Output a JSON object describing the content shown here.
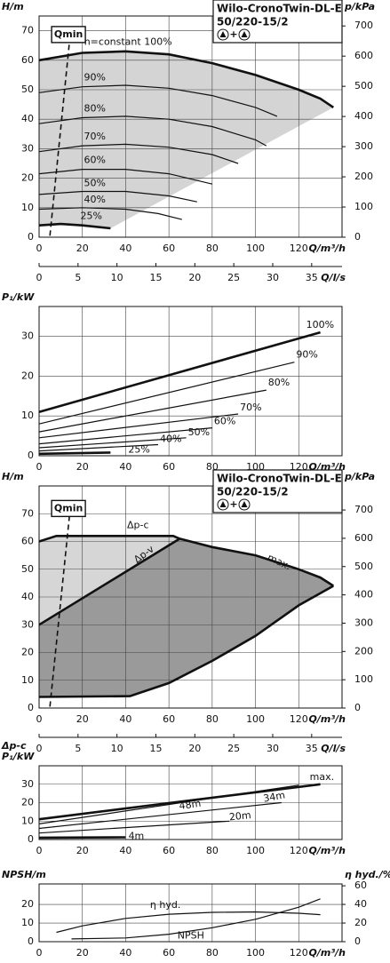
{
  "chart_data": [
    {
      "type": "line",
      "title": "Wilo-CronoTwin-DL-E",
      "subtitle": "50/220-15/2",
      "symbol_separator": "+",
      "ylabel": "H/m",
      "y2label": "p/kPa",
      "xlabel": "Q/m³/h",
      "x2label": "Q/l/s",
      "xlim": [
        0,
        140
      ],
      "xticks": [
        0,
        20,
        40,
        60,
        80,
        100,
        120
      ],
      "x2lim": [
        0,
        38.9
      ],
      "x2ticks": [
        0,
        5,
        10,
        15,
        20,
        25,
        30,
        35
      ],
      "ylim": [
        0,
        75
      ],
      "yticks": [
        0,
        10,
        20,
        30,
        40,
        50,
        60,
        70
      ],
      "y2lim": [
        0,
        733
      ],
      "y2ticks": [
        0,
        100,
        200,
        300,
        400,
        500,
        600,
        700
      ],
      "grid": true,
      "color": "#111111",
      "area_color": "#d4d4d4",
      "series": [
        {
          "name": "n=constant 100%",
          "bold": true,
          "x": [
            0,
            20,
            40,
            60,
            80,
            100,
            120,
            130,
            136
          ],
          "values": [
            60,
            62.5,
            63,
            62,
            59,
            55,
            50,
            47,
            44
          ]
        },
        {
          "name": "90%",
          "x": [
            0,
            20,
            40,
            60,
            80,
            100,
            110
          ],
          "values": [
            49,
            51,
            51.5,
            50.5,
            48,
            44,
            41
          ]
        },
        {
          "name": "80%",
          "x": [
            0,
            20,
            40,
            60,
            80,
            100,
            105
          ],
          "values": [
            38.5,
            40.5,
            41,
            40,
            37.5,
            33,
            31
          ]
        },
        {
          "name": "70%",
          "x": [
            0,
            20,
            40,
            60,
            80,
            92
          ],
          "values": [
            29,
            31,
            31.5,
            30.5,
            28,
            25
          ]
        },
        {
          "name": "60%",
          "x": [
            0,
            20,
            40,
            60,
            80
          ],
          "values": [
            21.5,
            23,
            23,
            21.5,
            18
          ]
        },
        {
          "name": "50%",
          "x": [
            0,
            20,
            40,
            60,
            73
          ],
          "values": [
            14.5,
            15.5,
            15.5,
            14,
            12
          ]
        },
        {
          "name": "40%",
          "x": [
            0,
            20,
            40,
            55,
            66
          ],
          "values": [
            9.5,
            10,
            9.5,
            8,
            6
          ]
        },
        {
          "name": "25%",
          "bold": true,
          "x": [
            0,
            10,
            20,
            33
          ],
          "values": [
            4,
            4.5,
            4,
            3
          ]
        },
        {
          "name": "Qmin",
          "dashed": true,
          "x": [
            5,
            14
          ],
          "values": [
            0.5,
            66
          ]
        }
      ]
    },
    {
      "type": "line",
      "ylabel": "P₁/kW",
      "xlabel": "Q/m³/h",
      "xlim": [
        0,
        140
      ],
      "xticks": [
        0,
        20,
        40,
        60,
        80,
        100,
        120
      ],
      "ylim": [
        0,
        37.5
      ],
      "yticks": [
        0,
        10,
        20,
        30
      ],
      "grid": true,
      "color": "#111111",
      "series": [
        {
          "name": "100%",
          "bold": true,
          "x": [
            0,
            130
          ],
          "values": [
            11,
            31
          ]
        },
        {
          "name": "90%",
          "x": [
            0,
            118
          ],
          "values": [
            8,
            23.5
          ]
        },
        {
          "name": "80%",
          "x": [
            0,
            105
          ],
          "values": [
            6,
            16.5
          ]
        },
        {
          "name": "70%",
          "x": [
            0,
            92
          ],
          "values": [
            4.5,
            10.5
          ]
        },
        {
          "name": "60%",
          "x": [
            0,
            80
          ],
          "values": [
            3,
            7
          ]
        },
        {
          "name": "50%",
          "x": [
            0,
            68
          ],
          "values": [
            2,
            4.5
          ]
        },
        {
          "name": "40%",
          "x": [
            0,
            55
          ],
          "values": [
            1.2,
            2.8
          ]
        },
        {
          "name": "25%",
          "bold": true,
          "x": [
            0,
            33
          ],
          "values": [
            0.5,
            0.8
          ]
        }
      ]
    },
    {
      "type": "line",
      "title": "Wilo-CronoTwin-DL-E",
      "subtitle": "50/220-15/2",
      "symbol_separator": "+",
      "ylabel": "H/m",
      "y2label": "p/kPa",
      "xlabel": "Q/m³/h",
      "x2label": "Q/l/s",
      "xlim": [
        0,
        140
      ],
      "xticks": [
        0,
        20,
        40,
        60,
        80,
        100,
        120
      ],
      "x2lim": [
        0,
        38.9
      ],
      "x2ticks": [
        0,
        5,
        10,
        15,
        20,
        25,
        30,
        35
      ],
      "ylim": [
        0,
        80
      ],
      "yticks": [
        0,
        10,
        20,
        30,
        40,
        50,
        60,
        70
      ],
      "y2lim": [
        0,
        785
      ],
      "y2ticks": [
        0,
        100,
        200,
        300,
        400,
        500,
        600,
        700
      ],
      "grid": true,
      "color": "#111111",
      "area_colors": [
        "#d6d6d6",
        "#9a9a9a"
      ],
      "series": [
        {
          "name": "Δp-c",
          "bold": true,
          "x": [
            0,
            8,
            62,
            65
          ],
          "values": [
            60,
            62,
            62,
            61
          ]
        },
        {
          "name": "Δp-v",
          "bold": true,
          "x": [
            0,
            65
          ],
          "values": [
            30,
            61
          ]
        },
        {
          "name": "max.",
          "bold": true,
          "x": [
            65,
            80,
            100,
            120,
            130,
            136
          ],
          "values": [
            61,
            58,
            55,
            50,
            47,
            44
          ]
        },
        {
          "bold": true,
          "x": [
            0,
            42,
            60,
            80,
            100,
            120,
            136
          ],
          "values": [
            4,
            4.3,
            9,
            17,
            26,
            37,
            44
          ]
        },
        {
          "name": "Qmin",
          "dashed": true,
          "x": [
            5,
            14
          ],
          "values": [
            0.5,
            69
          ]
        }
      ]
    },
    {
      "type": "line",
      "ylabel_top": "Δp-c",
      "ylabel": "P₁/kW",
      "xlabel": "Q/m³/h",
      "xlim": [
        0,
        140
      ],
      "xticks": [
        0,
        20,
        40,
        60,
        80,
        100,
        120
      ],
      "ylim": [
        0,
        40
      ],
      "yticks": [
        0,
        10,
        20,
        30
      ],
      "grid": true,
      "color": "#111111",
      "series": [
        {
          "name": "max.",
          "bold": true,
          "x": [
            0,
            130
          ],
          "values": [
            11,
            30
          ]
        },
        {
          "name": "48m",
          "x": [
            0,
            120
          ],
          "values": [
            8.5,
            29.5
          ]
        },
        {
          "name": "34m",
          "x": [
            0,
            112
          ],
          "values": [
            6,
            20
          ]
        },
        {
          "name": "20m",
          "x": [
            0,
            88
          ],
          "values": [
            3.5,
            10
          ]
        },
        {
          "name": "4m",
          "bold": true,
          "x": [
            0,
            40
          ],
          "values": [
            1,
            1.2
          ]
        }
      ]
    },
    {
      "type": "line",
      "ylabel": "NPSH/m",
      "y2label": "η hyd./%",
      "xlabel": "Q/m³/h",
      "xlim": [
        0,
        140
      ],
      "xticks": [
        0,
        20,
        40,
        60,
        80,
        100,
        120
      ],
      "ylim": [
        0,
        31
      ],
      "yticks": [
        0,
        10,
        20
      ],
      "y2lim": [
        0,
        62
      ],
      "y2ticks": [
        0,
        20,
        40,
        60
      ],
      "grid": true,
      "color": "#111111",
      "series": [
        {
          "name": "η hyd.",
          "axis": "y2",
          "x": [
            8,
            20,
            40,
            60,
            80,
            100,
            120,
            130
          ],
          "values": [
            10,
            17,
            25,
            29.5,
            31.5,
            32,
            30.5,
            29
          ]
        },
        {
          "name": "NPSH",
          "x": [
            15,
            40,
            60,
            80,
            100,
            120,
            130
          ],
          "values": [
            1.5,
            2,
            4,
            7.5,
            12,
            18.5,
            23
          ]
        }
      ]
    }
  ]
}
